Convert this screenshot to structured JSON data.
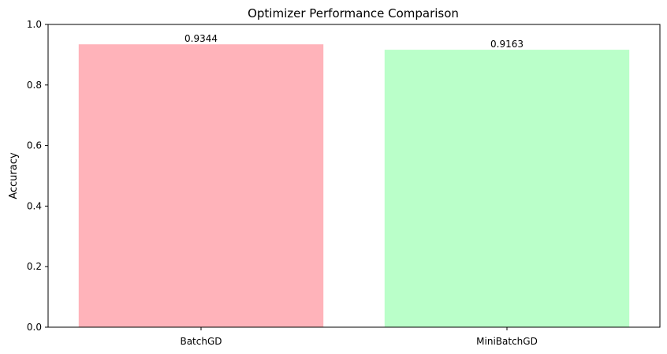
{
  "chart_data": {
    "type": "bar",
    "title": "Optimizer Performance Comparison",
    "xlabel": "",
    "ylabel": "Accuracy",
    "categories": [
      "BatchGD",
      "MiniBatchGD"
    ],
    "values": [
      0.9344,
      0.9163
    ],
    "data_labels": [
      "0.9344",
      "0.9163"
    ],
    "colors": [
      "#ffb3ba",
      "#baffc9"
    ],
    "ylim": [
      0,
      1.0
    ],
    "yticks": [
      0.0,
      0.2,
      0.4,
      0.6,
      0.8,
      1.0
    ],
    "ytick_labels": [
      "0.0",
      "0.2",
      "0.4",
      "0.6",
      "0.8",
      "1.0"
    ],
    "grid": false,
    "legend": "none"
  }
}
